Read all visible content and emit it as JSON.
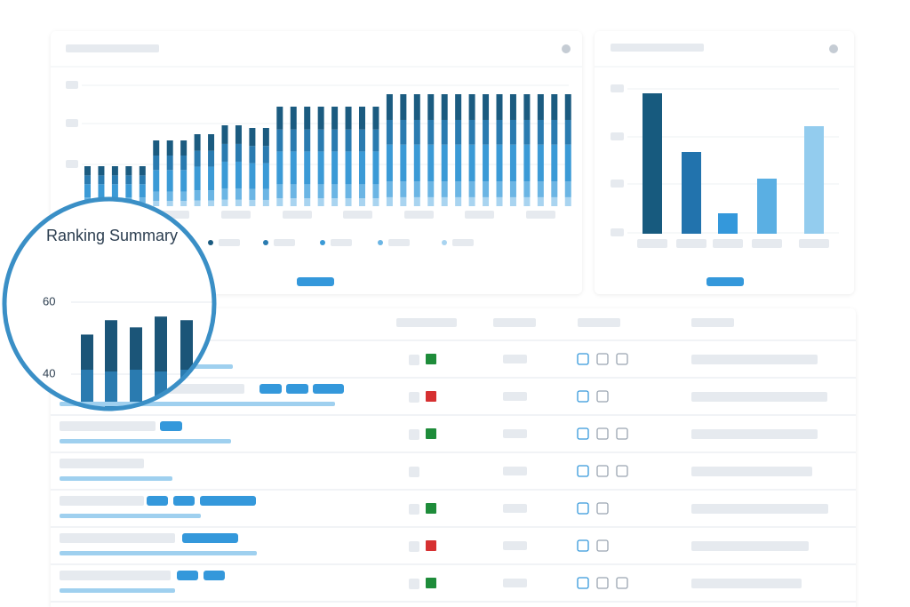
{
  "chart_data": {
    "type": "bar",
    "title": "Ranking Summary",
    "values": [
      51,
      55,
      53,
      56,
      55
    ],
    "color": "#1b5578",
    "yticks": [
      40,
      60
    ],
    "ylim": [
      40,
      60
    ]
  }
}
